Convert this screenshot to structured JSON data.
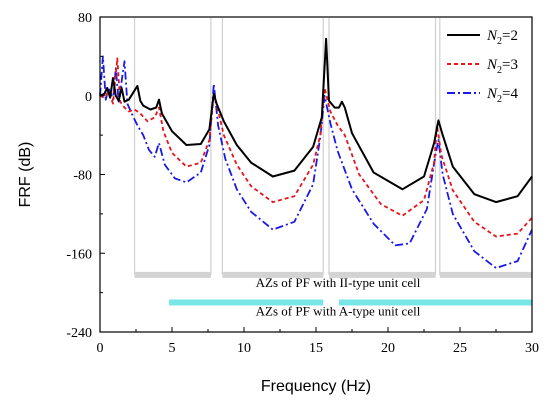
{
  "chart_data": {
    "type": "line",
    "xlabel": "Frequency (Hz)",
    "ylabel": "FRF (dB)",
    "xlim": [
      0,
      30
    ],
    "ylim": [
      -240,
      80
    ],
    "xticks": [
      0,
      5,
      10,
      15,
      20,
      25,
      30
    ],
    "yticks": [
      -240,
      -160,
      -80,
      0,
      80
    ],
    "legend_position": "top-right",
    "series": [
      {
        "name": "N2=2",
        "name_parts": {
          "base": "N",
          "sub": "2",
          "rest": "=2"
        },
        "color": "#000000",
        "dash": "solid",
        "points": [
          [
            0,
            0
          ],
          [
            0.3,
            2
          ],
          [
            0.5,
            8
          ],
          [
            0.7,
            -2
          ],
          [
            0.9,
            18
          ],
          [
            1.1,
            0
          ],
          [
            1.3,
            -5
          ],
          [
            1.5,
            8
          ],
          [
            1.7,
            -6
          ],
          [
            2.0,
            -4
          ],
          [
            2.3,
            3
          ],
          [
            2.6,
            10
          ],
          [
            2.8,
            -5
          ],
          [
            3.0,
            -10
          ],
          [
            3.5,
            -14
          ],
          [
            3.9,
            -12
          ],
          [
            4.1,
            -4
          ],
          [
            4.3,
            -18
          ],
          [
            5.0,
            -36
          ],
          [
            6.0,
            -50
          ],
          [
            7.0,
            -49
          ],
          [
            7.6,
            -34
          ],
          [
            7.9,
            2
          ],
          [
            8.1,
            -8
          ],
          [
            8.6,
            -26
          ],
          [
            9.5,
            -50
          ],
          [
            10.5,
            -68
          ],
          [
            12.0,
            -82
          ],
          [
            13.5,
            -76
          ],
          [
            14.8,
            -52
          ],
          [
            15.4,
            -22
          ],
          [
            15.7,
            58
          ],
          [
            15.9,
            -5
          ],
          [
            16.3,
            -12
          ],
          [
            16.6,
            -12
          ],
          [
            16.8,
            -6
          ],
          [
            17.0,
            -12
          ],
          [
            17.5,
            -38
          ],
          [
            19.0,
            -78
          ],
          [
            21.0,
            -95
          ],
          [
            22.5,
            -82
          ],
          [
            23.2,
            -48
          ],
          [
            23.5,
            -25
          ],
          [
            23.8,
            -40
          ],
          [
            24.5,
            -72
          ],
          [
            26.0,
            -100
          ],
          [
            27.5,
            -108
          ],
          [
            29.0,
            -102
          ],
          [
            30.0,
            -82
          ]
        ]
      },
      {
        "name": "N2=3",
        "name_parts": {
          "base": "N",
          "sub": "2",
          "rest": "=3"
        },
        "color": "#e8141b",
        "dash": "4,3",
        "points": [
          [
            0,
            0
          ],
          [
            0.3,
            -2
          ],
          [
            0.6,
            4
          ],
          [
            0.9,
            -8
          ],
          [
            1.2,
            38
          ],
          [
            1.4,
            -6
          ],
          [
            1.7,
            -12
          ],
          [
            2.0,
            -16
          ],
          [
            2.4,
            -14
          ],
          [
            2.8,
            -18
          ],
          [
            3.3,
            -26
          ],
          [
            3.8,
            -22
          ],
          [
            4.1,
            -12
          ],
          [
            4.4,
            -36
          ],
          [
            5.0,
            -58
          ],
          [
            6.0,
            -72
          ],
          [
            7.0,
            -68
          ],
          [
            7.6,
            -45
          ],
          [
            7.9,
            2
          ],
          [
            8.2,
            -15
          ],
          [
            8.6,
            -40
          ],
          [
            9.5,
            -70
          ],
          [
            10.5,
            -92
          ],
          [
            12.0,
            -108
          ],
          [
            13.5,
            -102
          ],
          [
            14.8,
            -70
          ],
          [
            15.3,
            -40
          ],
          [
            15.6,
            8
          ],
          [
            16.0,
            -16
          ],
          [
            16.5,
            -30
          ],
          [
            17.0,
            -40
          ],
          [
            18.0,
            -80
          ],
          [
            19.5,
            -110
          ],
          [
            21.0,
            -122
          ],
          [
            22.5,
            -106
          ],
          [
            23.2,
            -68
          ],
          [
            23.4,
            -30
          ],
          [
            23.7,
            -60
          ],
          [
            24.5,
            -96
          ],
          [
            26.0,
            -128
          ],
          [
            27.5,
            -143
          ],
          [
            29.0,
            -140
          ],
          [
            30.0,
            -124
          ]
        ]
      },
      {
        "name": "N2=4",
        "name_parts": {
          "base": "N",
          "sub": "2",
          "rest": "=4"
        },
        "color": "#1a1ae8",
        "dash": "8,3,2,3",
        "points": [
          [
            0,
            0
          ],
          [
            0.2,
            40
          ],
          [
            0.4,
            -4
          ],
          [
            0.6,
            8
          ],
          [
            0.9,
            -4
          ],
          [
            1.1,
            28
          ],
          [
            1.3,
            -6
          ],
          [
            1.7,
            35
          ],
          [
            1.9,
            -8
          ],
          [
            2.2,
            -18
          ],
          [
            2.6,
            -30
          ],
          [
            3.0,
            -40
          ],
          [
            3.4,
            -55
          ],
          [
            3.8,
            -62
          ],
          [
            4.1,
            -48
          ],
          [
            4.5,
            -70
          ],
          [
            5.2,
            -84
          ],
          [
            6.0,
            -88
          ],
          [
            7.0,
            -78
          ],
          [
            7.6,
            -50
          ],
          [
            7.9,
            12
          ],
          [
            8.2,
            -30
          ],
          [
            8.7,
            -64
          ],
          [
            9.5,
            -95
          ],
          [
            10.5,
            -118
          ],
          [
            12.0,
            -136
          ],
          [
            13.5,
            -128
          ],
          [
            14.8,
            -90
          ],
          [
            15.3,
            -42
          ],
          [
            15.6,
            0
          ],
          [
            16.0,
            -28
          ],
          [
            16.5,
            -56
          ],
          [
            17.5,
            -95
          ],
          [
            19.0,
            -130
          ],
          [
            20.5,
            -152
          ],
          [
            21.5,
            -150
          ],
          [
            22.7,
            -115
          ],
          [
            23.3,
            -60
          ],
          [
            23.5,
            -45
          ],
          [
            23.8,
            -80
          ],
          [
            24.5,
            -120
          ],
          [
            26.0,
            -158
          ],
          [
            27.5,
            -175
          ],
          [
            29.0,
            -168
          ],
          [
            30.0,
            -136
          ]
        ]
      }
    ],
    "bands": [
      {
        "label": "AZs of PF with II-type unit cell",
        "color": "#d3d3d3",
        "level": -182,
        "ranges": [
          [
            2.4,
            7.7
          ],
          [
            8.5,
            15.5
          ],
          [
            15.9,
            23.3
          ],
          [
            23.6,
            30.0
          ]
        ]
      },
      {
        "label": "AZs of PF with A-type unit cell",
        "color": "#76e6e6",
        "level": -210,
        "ranges": [
          [
            4.8,
            15.5
          ],
          [
            16.6,
            30.0
          ]
        ]
      }
    ]
  }
}
